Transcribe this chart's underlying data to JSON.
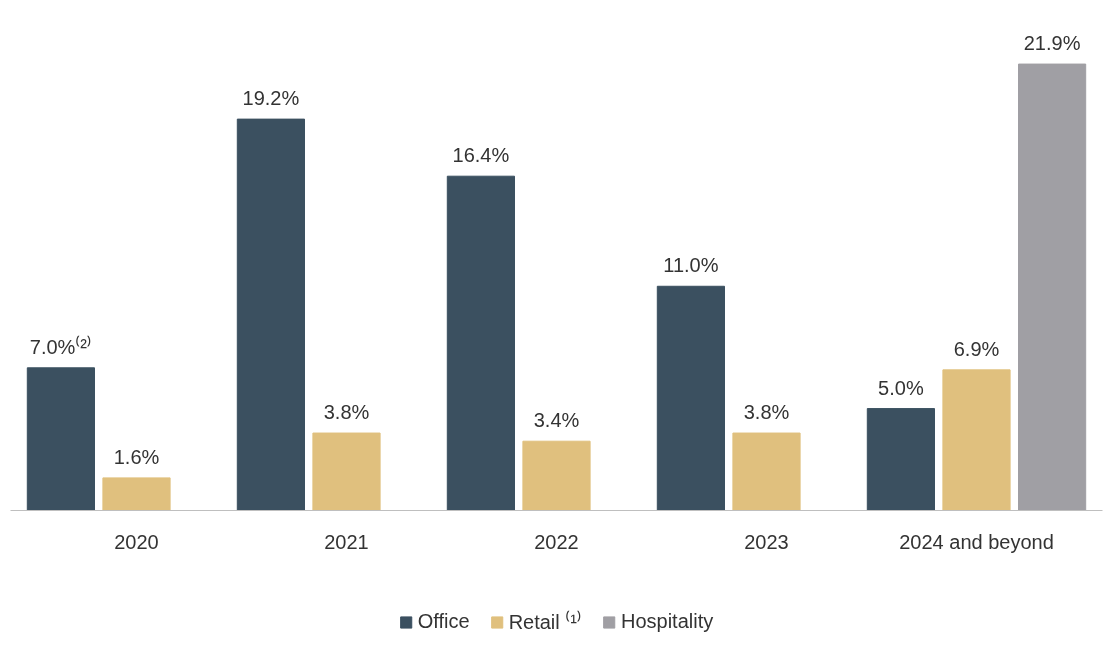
{
  "chart_data": {
    "type": "bar",
    "categories": [
      "2020",
      "2021",
      "2022",
      "2023",
      "2024 and beyond"
    ],
    "series": [
      {
        "name": "Office",
        "color": "#3b5060",
        "values": [
          7.0,
          19.2,
          16.4,
          11.0,
          5.0
        ],
        "value_labels": [
          "7.0%⁽²⁾",
          "19.2%",
          "16.4%",
          "11.0%",
          "5.0%"
        ]
      },
      {
        "name": "Retail ⁽¹⁾",
        "color": "#e0c07e",
        "values": [
          1.6,
          3.8,
          3.4,
          3.8,
          6.9
        ],
        "value_labels": [
          "1.6%",
          "3.8%",
          "3.4%",
          "3.8%",
          "6.9%"
        ]
      },
      {
        "name": "Hospitality",
        "color": "#a09fa4",
        "values": [
          null,
          null,
          null,
          null,
          21.9
        ],
        "value_labels": [
          null,
          null,
          null,
          null,
          "21.9%"
        ]
      }
    ],
    "legend": "bottom",
    "grid": false
  }
}
